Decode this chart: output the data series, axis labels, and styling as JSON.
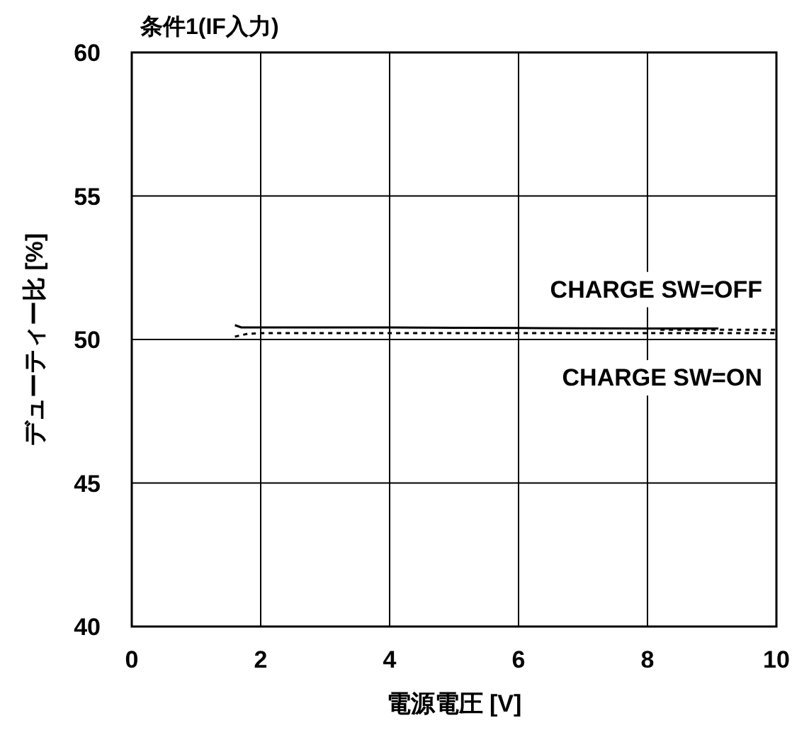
{
  "chart_data": {
    "type": "line",
    "title": "条件1(IF入力)",
    "xlabel": "電源電圧 [V]",
    "ylabel": "デューティー比 [%]",
    "xlim": [
      0,
      10
    ],
    "xticks": [
      0,
      2,
      4,
      6,
      8,
      10
    ],
    "ylim": [
      40,
      60
    ],
    "yticks": [
      40,
      45,
      50,
      55,
      60
    ],
    "grid": true,
    "series": [
      {
        "name": "CHARGE SW=OFF",
        "color": "#000000",
        "line_style": "solid",
        "x": [
          1.6,
          1.7,
          2,
          3,
          4,
          5,
          6,
          7,
          8,
          9.1
        ],
        "values": [
          50.5,
          50.42,
          50.42,
          50.42,
          50.42,
          50.41,
          50.4,
          50.39,
          50.38,
          50.38
        ]
      },
      {
        "name": "CHARGE SW=ON",
        "color": "#000000",
        "line_style": "dotted",
        "x": [
          1.6,
          1.8,
          2,
          4,
          6,
          8,
          10
        ],
        "values": [
          50.1,
          50.2,
          50.22,
          50.22,
          50.22,
          50.22,
          50.22
        ]
      },
      {
        "color": "#000000",
        "line_style": "dotted",
        "x": [
          8.2,
          9,
          10
        ],
        "values": [
          50.34,
          50.34,
          50.34
        ]
      }
    ]
  }
}
